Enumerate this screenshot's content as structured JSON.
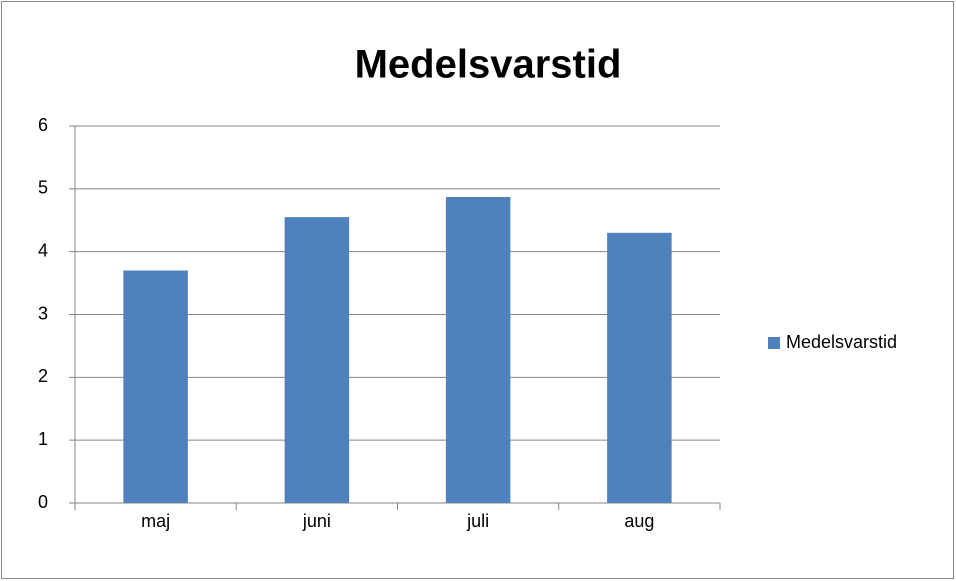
{
  "chart_data": {
    "type": "bar",
    "title": "Medelsvarstid",
    "categories": [
      "maj",
      "juni",
      "juli",
      "aug"
    ],
    "series": [
      {
        "name": "Medelsvarstid",
        "color": "#4f81bd",
        "values": [
          3.7,
          4.55,
          4.87,
          4.3
        ]
      }
    ],
    "ylim": [
      0,
      6
    ],
    "yticks": [
      0,
      1,
      2,
      3,
      4,
      5,
      6
    ],
    "grid": true,
    "legend": "right"
  }
}
